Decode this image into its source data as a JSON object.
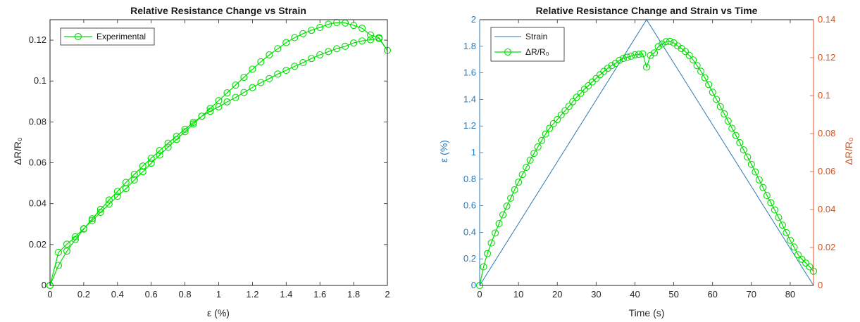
{
  "colors": {
    "green": "#00dd00",
    "strain_blue": "#2a7ab8",
    "right_axis_orange": "#d95319",
    "axis_dark": "#262626"
  },
  "chart_data": [
    {
      "type": "line",
      "title": "Relative Resistance Change vs Strain",
      "xlabel": "ε (%)",
      "ylabel": "ΔR/R₀",
      "xlim": [
        0,
        2
      ],
      "ylim": [
        0,
        0.13
      ],
      "xticks": [
        "0",
        "0.2",
        "0.4",
        "0.6",
        "0.8",
        "1",
        "1.2",
        "1.4",
        "1.6",
        "1.8",
        "2"
      ],
      "yticks": [
        "0",
        "0.02",
        "0.04",
        "0.06",
        "0.08",
        "0.1",
        "0.12"
      ],
      "grid": false,
      "legend": "top-left",
      "series": [
        {
          "name": "Experimental",
          "marker": "circle",
          "x": [
            0,
            0.05,
            0.1,
            0.15,
            0.2,
            0.25,
            0.3,
            0.35,
            0.4,
            0.45,
            0.5,
            0.55,
            0.6,
            0.65,
            0.7,
            0.75,
            0.8,
            0.85,
            0.9,
            0.95,
            1.0,
            1.05,
            1.1,
            1.15,
            1.2,
            1.25,
            1.3,
            1.35,
            1.4,
            1.45,
            1.5,
            1.55,
            1.6,
            1.65,
            1.7,
            1.75,
            1.8,
            1.85,
            1.9,
            1.95,
            2.0,
            1.95,
            1.9,
            1.85,
            1.8,
            1.75,
            1.7,
            1.65,
            1.6,
            1.55,
            1.5,
            1.45,
            1.4,
            1.35,
            1.3,
            1.25,
            1.2,
            1.15,
            1.1,
            1.05,
            1.0,
            0.95,
            0.9,
            0.85,
            0.8,
            0.75,
            0.7,
            0.65,
            0.6,
            0.55,
            0.5,
            0.45,
            0.4,
            0.35,
            0.3,
            0.25,
            0.2,
            0.15,
            0.1,
            0.05,
            0
          ],
          "y": [
            0,
            0.0098,
            0.0168,
            0.0224,
            0.0276,
            0.0326,
            0.0372,
            0.0418,
            0.046,
            0.0504,
            0.0544,
            0.0584,
            0.0622,
            0.066,
            0.0696,
            0.073,
            0.0764,
            0.0798,
            0.0828,
            0.0852,
            0.0874,
            0.0898,
            0.092,
            0.0944,
            0.0968,
            0.0992,
            0.1012,
            0.1034,
            0.1052,
            0.1072,
            0.109,
            0.111,
            0.1128,
            0.1144,
            0.1158,
            0.117,
            0.1186,
            0.1196,
            0.1202,
            0.1208,
            0.115,
            0.1212,
            0.1225,
            0.1258,
            0.1272,
            0.1284,
            0.1286,
            0.1278,
            0.1262,
            0.1248,
            0.1232,
            0.1212,
            0.1188,
            0.1158,
            0.1128,
            0.1094,
            0.1058,
            0.1018,
            0.098,
            0.0942,
            0.0904,
            0.0866,
            0.0828,
            0.079,
            0.0752,
            0.0714,
            0.0676,
            0.0638,
            0.0598,
            0.0556,
            0.0516,
            0.0474,
            0.0436,
            0.0398,
            0.0358,
            0.0318,
            0.0278,
            0.0238,
            0.0202,
            0.0162,
            0.0
          ]
        }
      ]
    },
    {
      "type": "line",
      "title": "Relative Resistance Change and Strain vs Time",
      "xlabel": "Time (s)",
      "ylabel": "ε (%)",
      "ylabel_right": "ΔR/R₀",
      "xlim": [
        0,
        86
      ],
      "ylim": [
        0,
        2
      ],
      "ylim_right": [
        0,
        0.14
      ],
      "xticks": [
        "0",
        "10",
        "20",
        "30",
        "40",
        "50",
        "60",
        "70",
        "80"
      ],
      "yticks": [
        "0",
        "0.2",
        "0.4",
        "0.6",
        "0.8",
        "1",
        "1.2",
        "1.4",
        "1.6",
        "1.8",
        "2"
      ],
      "yticks_right": [
        "0",
        "0.02",
        "0.04",
        "0.06",
        "0.08",
        "0.1",
        "0.12",
        "0.14"
      ],
      "grid": false,
      "legend": "top-left",
      "series": [
        {
          "name": "Strain",
          "axis": "left",
          "x": [
            0,
            43,
            86
          ],
          "y": [
            0,
            2,
            0
          ]
        },
        {
          "name": "ΔR/R₀",
          "axis": "right",
          "marker": "circle",
          "x": [
            0,
            1,
            2,
            3,
            4,
            5,
            6,
            7,
            8,
            9,
            10,
            11,
            12,
            13,
            14,
            15,
            16,
            17,
            18,
            19,
            20,
            21,
            22,
            23,
            24,
            25,
            26,
            27,
            28,
            29,
            30,
            31,
            32,
            33,
            34,
            35,
            36,
            37,
            38,
            39,
            40,
            41,
            42,
            43,
            44,
            45,
            46,
            47,
            48,
            49,
            50,
            51,
            52,
            53,
            54,
            55,
            56,
            57,
            58,
            59,
            60,
            61,
            62,
            63,
            64,
            65,
            66,
            67,
            68,
            69,
            70,
            71,
            72,
            73,
            74,
            75,
            76,
            77,
            78,
            79,
            80,
            81,
            82,
            83,
            84,
            85,
            86
          ],
          "y": [
            0,
            0.0098,
            0.0168,
            0.0224,
            0.0276,
            0.0326,
            0.0372,
            0.0418,
            0.046,
            0.0504,
            0.0544,
            0.0584,
            0.0622,
            0.066,
            0.0696,
            0.073,
            0.0764,
            0.0798,
            0.0828,
            0.0852,
            0.0874,
            0.0898,
            0.092,
            0.0944,
            0.0968,
            0.0992,
            0.1012,
            0.1034,
            0.1052,
            0.1072,
            0.109,
            0.111,
            0.1128,
            0.1144,
            0.1158,
            0.117,
            0.1186,
            0.1196,
            0.1202,
            0.1208,
            0.1215,
            0.1218,
            0.122,
            0.115,
            0.1212,
            0.1225,
            0.1258,
            0.1272,
            0.1284,
            0.1286,
            0.1278,
            0.1262,
            0.1248,
            0.1232,
            0.1212,
            0.1188,
            0.1158,
            0.1128,
            0.1094,
            0.1058,
            0.1018,
            0.098,
            0.0942,
            0.0904,
            0.0866,
            0.0828,
            0.079,
            0.0752,
            0.0714,
            0.0676,
            0.0638,
            0.0598,
            0.0556,
            0.0516,
            0.0474,
            0.0436,
            0.0398,
            0.0358,
            0.0318,
            0.0278,
            0.0238,
            0.0202,
            0.0162,
            0.0138,
            0.0118,
            0.0098,
            0.0075
          ]
        }
      ]
    }
  ]
}
